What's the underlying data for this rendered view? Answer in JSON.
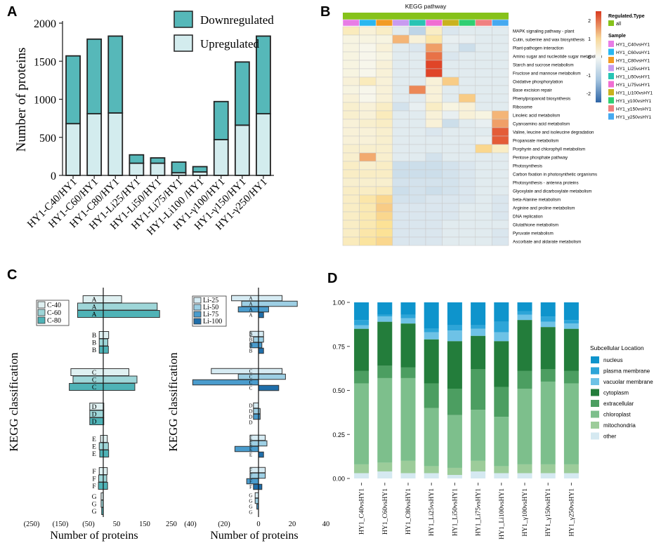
{
  "panels": {
    "a": "A",
    "b": "B",
    "c": "C",
    "d": "D"
  },
  "chart_data": [
    {
      "type": "bar",
      "stacked": true,
      "categories": [
        "HY1-C40/HY1",
        "HY1-C60/HY1",
        "HY1-C80/HY1",
        "HY1-Li25/HY1",
        "HY1-Li50/HY1",
        "HY1-Li75/HY1",
        "HY1-Li100 /HY1",
        "HY1-γ100/HY1",
        "HY1-γ150/HY1",
        "HY1-γ250/HY1"
      ],
      "series": [
        {
          "name": "Upregulated",
          "color": "#d3ecee",
          "values": [
            680,
            810,
            820,
            160,
            160,
            35,
            45,
            470,
            660,
            810
          ]
        },
        {
          "name": "Downregulated",
          "color": "#56b8b9",
          "values": [
            890,
            980,
            1010,
            110,
            70,
            140,
            70,
            500,
            830,
            1020
          ]
        }
      ],
      "ylabel": "Number of proteins",
      "yticks": [
        0,
        500,
        1000,
        1500,
        2000
      ],
      "ylim": [
        0,
        2000
      ]
    },
    {
      "type": "heatmap",
      "title": "KEGG pathway",
      "columns": [
        "HY1_C40vsHY1",
        "HY1_C60vsHY1",
        "HY1_C80vsHY1",
        "HY1_Li25vsHY1",
        "HY1_Li50vsHY1",
        "HY1_Li75vsHY1",
        "HY1_Li100vsHY1",
        "HY1_γ100vsHY1",
        "HY1_γ150vsHY1",
        "HY1_γ250vsHY1"
      ],
      "column_colors": [
        "#e87de6",
        "#29b7f0",
        "#f29b24",
        "#c89bf0",
        "#27c4b4",
        "#f06ed2",
        "#c9b21e",
        "#2fcf72",
        "#f08080",
        "#45a9f0"
      ],
      "rows": [
        "MAPK signaling pathway - plant",
        "Cutin, suberine and wax biosynthesis",
        "Plant-pathogen interaction",
        "Amino sugar and nucleotide sugar metabolism",
        "Starch and sucrose metabolism",
        "Fructose and mannose metabolism",
        "Oxidative phosphorylation",
        "Base excision repair",
        "Phenylpropanoid biosynthesis",
        "Ribosome",
        "Linoleic acid metabolism",
        "Cyanoamino acid metabolism",
        "Valine, leucine and isoleucine degradation",
        "Propanoate metabolism",
        "Porphyrin and chlorophyll metabolism",
        "Pentose phosphate pathway",
        "Photosynthesis",
        "Carbon fixation in photosynthetic organisms",
        "Photosynthesis - antenna proteins",
        "Glyoxylate and dicarboxylate metabolism",
        "beta-Alanine metabolism",
        "Arginine and proline metabolism",
        "DNA replication",
        "Glutathione metabolism",
        "Pyruvate metabolism",
        "Ascorbate and aldarate metabolism"
      ],
      "values": [
        [
          0.6,
          0.3,
          0.5,
          -0.3,
          -0.8,
          0.5,
          -0.4,
          -0.3,
          -0.3,
          -0.3
        ],
        [
          0.2,
          0.2,
          0.2,
          1.4,
          0.3,
          0.8,
          -0.2,
          -0.2,
          -0.3,
          -0.3
        ],
        [
          0.2,
          0.1,
          0.3,
          -0.3,
          -0.4,
          1.6,
          -0.3,
          -0.6,
          -0.3,
          -0.3
        ],
        [
          0.2,
          0.1,
          0.2,
          -0.3,
          -0.3,
          2.0,
          -0.4,
          -0.3,
          -0.3,
          -0.3
        ],
        [
          0.2,
          0.1,
          0.3,
          -0.3,
          -0.3,
          2.4,
          -0.3,
          -0.3,
          -0.3,
          -0.3
        ],
        [
          0.2,
          0.1,
          0.3,
          -0.3,
          -0.3,
          2.4,
          -0.3,
          -0.3,
          -0.3,
          -0.3
        ],
        [
          0.3,
          0.6,
          0.3,
          -0.3,
          -0.3,
          0.3,
          1.2,
          -0.3,
          -0.3,
          -0.3
        ],
        [
          0.2,
          0.1,
          0.3,
          -0.3,
          1.8,
          0.3,
          -0.3,
          -0.3,
          -0.3,
          -0.3
        ],
        [
          0.3,
          0.1,
          0.3,
          -0.3,
          -0.3,
          0.3,
          -0.3,
          1.2,
          -0.3,
          -0.3
        ],
        [
          0.4,
          0.3,
          0.5,
          -0.5,
          -0.2,
          0.5,
          0.2,
          0.3,
          -0.3,
          -0.3
        ],
        [
          0.4,
          0.3,
          0.6,
          -0.3,
          -0.3,
          0.3,
          -0.2,
          0.3,
          0.2,
          1.4
        ],
        [
          0.3,
          0.4,
          0.5,
          -0.3,
          -0.3,
          0.3,
          -0.6,
          -0.3,
          -0.2,
          1.6
        ],
        [
          0.3,
          0.3,
          0.4,
          -0.3,
          -0.3,
          -0.4,
          -0.3,
          -0.3,
          -0.3,
          2.2
        ],
        [
          0.3,
          0.3,
          0.4,
          -0.3,
          -0.3,
          -0.3,
          -0.3,
          -0.3,
          -0.2,
          2.2
        ],
        [
          0.4,
          0.4,
          0.4,
          -0.3,
          -0.3,
          -0.3,
          -0.3,
          -0.3,
          1.1,
          0.5
        ],
        [
          0.4,
          1.5,
          0.4,
          -0.3,
          -0.3,
          -0.5,
          -0.3,
          -0.3,
          -0.3,
          -0.3
        ],
        [
          0.5,
          0.4,
          0.5,
          -0.6,
          -0.6,
          -0.6,
          -0.5,
          -0.4,
          -0.3,
          -0.3
        ],
        [
          0.5,
          0.5,
          0.5,
          -0.6,
          -0.6,
          -0.6,
          -0.5,
          -0.4,
          -0.3,
          -0.3
        ],
        [
          0.4,
          0.4,
          0.4,
          -0.5,
          -0.5,
          -0.5,
          -0.5,
          -0.4,
          -0.3,
          -0.3
        ],
        [
          0.5,
          0.5,
          0.6,
          -0.6,
          -0.5,
          -0.6,
          -0.5,
          -0.4,
          -0.3,
          -0.3
        ],
        [
          0.5,
          0.8,
          1.1,
          -0.5,
          -0.5,
          -0.4,
          -0.4,
          -0.4,
          -0.3,
          -0.4
        ],
        [
          0.5,
          0.7,
          1.2,
          -0.4,
          -0.4,
          -0.4,
          -0.4,
          -0.3,
          -0.3,
          -0.4
        ],
        [
          0.5,
          0.7,
          1.1,
          -0.4,
          -0.4,
          -0.4,
          -0.4,
          -0.3,
          -0.3,
          -0.4
        ],
        [
          0.5,
          0.7,
          1.0,
          -0.4,
          -0.4,
          -0.4,
          -0.3,
          -0.3,
          -0.3,
          -0.3
        ],
        [
          0.5,
          0.8,
          1.0,
          -0.4,
          -0.4,
          -0.4,
          -0.3,
          -0.3,
          -0.3,
          -0.4
        ],
        [
          0.6,
          0.9,
          1.1,
          -0.4,
          -0.4,
          -0.4,
          -0.3,
          -0.3,
          -0.3,
          -0.4
        ]
      ],
      "scale_ticks": [
        2,
        1,
        0,
        -1,
        -2
      ],
      "legend": {
        "regulated_title": "Regulated.Type",
        "regulated_value": "all",
        "sample_title": "Sample"
      }
    },
    {
      "type": "bar",
      "orientation": "horizontal-diverging",
      "categories": [
        "A",
        "B",
        "C",
        "D",
        "E",
        "F",
        "G"
      ],
      "ylabel": "KEGG classification",
      "xlabel": "Number of proteins",
      "left": {
        "series": [
          {
            "name": "C-40",
            "color": "#dff0f1"
          },
          {
            "name": "C-60",
            "color": "#9ed6d8"
          },
          {
            "name": "C-80",
            "color": "#4fb3b7"
          }
        ],
        "bars": {
          "C-40": [
            [
              -75,
              68
            ],
            [
              -15,
              20
            ],
            [
              -120,
              95
            ],
            [
              -50,
              2
            ],
            [
              -10,
              15
            ],
            [
              -15,
              15
            ],
            [
              -8,
              0
            ]
          ],
          "C-60": [
            [
              -95,
              200
            ],
            [
              -15,
              17
            ],
            [
              -112,
              125
            ],
            [
              -50,
              2
            ],
            [
              -15,
              19
            ],
            [
              -17,
              13
            ],
            [
              -8,
              0
            ]
          ],
          "C-80": [
            [
              -95,
              209
            ],
            [
              -15,
              19
            ],
            [
              -126,
              117
            ],
            [
              -50,
              2
            ],
            [
              -13,
              20
            ],
            [
              -18,
              16
            ],
            [
              -6,
              0
            ]
          ]
        },
        "xticks": [
          "(250)",
          "(150)",
          "(50)",
          "50",
          "150",
          "250"
        ]
      },
      "right": {
        "series": [
          {
            "name": "Li-25",
            "color": "#d6ebf3"
          },
          {
            "name": "Li-50",
            "color": "#9dcfe4"
          },
          {
            "name": "Li-75",
            "color": "#4a9ccd"
          },
          {
            "name": "Li-100",
            "color": "#1f6eaa"
          }
        ],
        "bars": {
          "Li-25": [
            [
              -16,
              14
            ],
            [
              -5,
              3
            ],
            [
              -28,
              14
            ],
            [
              -3,
              0
            ],
            [
              -5,
              4
            ],
            [
              -5,
              4
            ],
            [
              -2,
              0
            ]
          ],
          "Li-50": [
            [
              -10,
              23
            ],
            [
              -3,
              3
            ],
            [
              -12,
              16
            ],
            [
              -3,
              1
            ],
            [
              -5,
              5
            ],
            [
              -5,
              4
            ],
            [
              -2,
              0
            ]
          ],
          "Li-75": [
            [
              -12,
              6
            ],
            [
              -5,
              2
            ],
            [
              -39,
              0
            ],
            [
              -3,
              1
            ],
            [
              -14,
              0
            ],
            [
              -7,
              0
            ],
            [
              -1,
              0
            ]
          ],
          "Li-100": [
            [
              0,
              3
            ],
            [
              0,
              3
            ],
            [
              0,
              12
            ],
            [
              0,
              0
            ],
            [
              0,
              3
            ],
            [
              -3,
              2
            ],
            [
              0,
              0
            ]
          ]
        },
        "xticks": [
          "(40)",
          "(20)",
          "0",
          "20",
          "40"
        ]
      }
    },
    {
      "type": "bar",
      "stacked": true,
      "categories": [
        "HY1_C40vsHY1",
        "HY1_C60vsHY1",
        "HY1_C80vsHY1",
        "HY1_Li25vsHY1",
        "HY1_Li50vsHY1",
        "HY1_Li75vsHY1",
        "HY1_Li100vsHY1",
        "HY1_γ100vsHY1",
        "HY1_γ150vsHY1",
        "HY1_γ250vsHY1"
      ],
      "series": [
        {
          "name": "other",
          "color": "#d5e9f1",
          "values": [
            0.03,
            0.04,
            0.03,
            0.03,
            0.02,
            0.04,
            0.03,
            0.03,
            0.03,
            0.03
          ]
        },
        {
          "name": "mitochondria",
          "color": "#9ccc9a",
          "values": [
            0.05,
            0.05,
            0.07,
            0.04,
            0.04,
            0.06,
            0.04,
            0.05,
            0.05,
            0.05
          ]
        },
        {
          "name": "chloroplast",
          "color": "#7dbf8c",
          "values": [
            0.46,
            0.48,
            0.47,
            0.33,
            0.3,
            0.29,
            0.28,
            0.43,
            0.47,
            0.46
          ]
        },
        {
          "name": "extracellular",
          "color": "#4c9e61",
          "values": [
            0.07,
            0.07,
            0.06,
            0.14,
            0.15,
            0.23,
            0.17,
            0.1,
            0.07,
            0.07
          ]
        },
        {
          "name": "cytoplasm",
          "color": "#237d3b",
          "values": [
            0.24,
            0.25,
            0.25,
            0.25,
            0.27,
            0.19,
            0.26,
            0.29,
            0.24,
            0.24
          ]
        },
        {
          "name": "vacuolar membrane",
          "color": "#6ec2e6",
          "values": [
            0.02,
            0.03,
            0.03,
            0.04,
            0.06,
            0.04,
            0.05,
            0.03,
            0.03,
            0.03
          ]
        },
        {
          "name": "plasma membrane",
          "color": "#2da5d8",
          "values": [
            0.03,
            0.01,
            0.02,
            0.02,
            0.03,
            0.02,
            0.06,
            0.02,
            0.03,
            0.02
          ]
        },
        {
          "name": "nucleus",
          "color": "#0e94cc",
          "values": [
            0.1,
            0.07,
            0.07,
            0.15,
            0.13,
            0.13,
            0.11,
            0.05,
            0.08,
            0.1
          ]
        }
      ],
      "legend_title": "Subcellular Location",
      "legend_order": [
        "nucleus",
        "plasma membrane",
        "vacuolar membrane",
        "cytoplasm",
        "extracellular",
        "chloroplast",
        "mitochondria",
        "other"
      ],
      "yticks": [
        "0.00",
        "0.25",
        "0.50",
        "0.75",
        "1.00"
      ],
      "ylim": [
        0,
        1
      ]
    }
  ]
}
